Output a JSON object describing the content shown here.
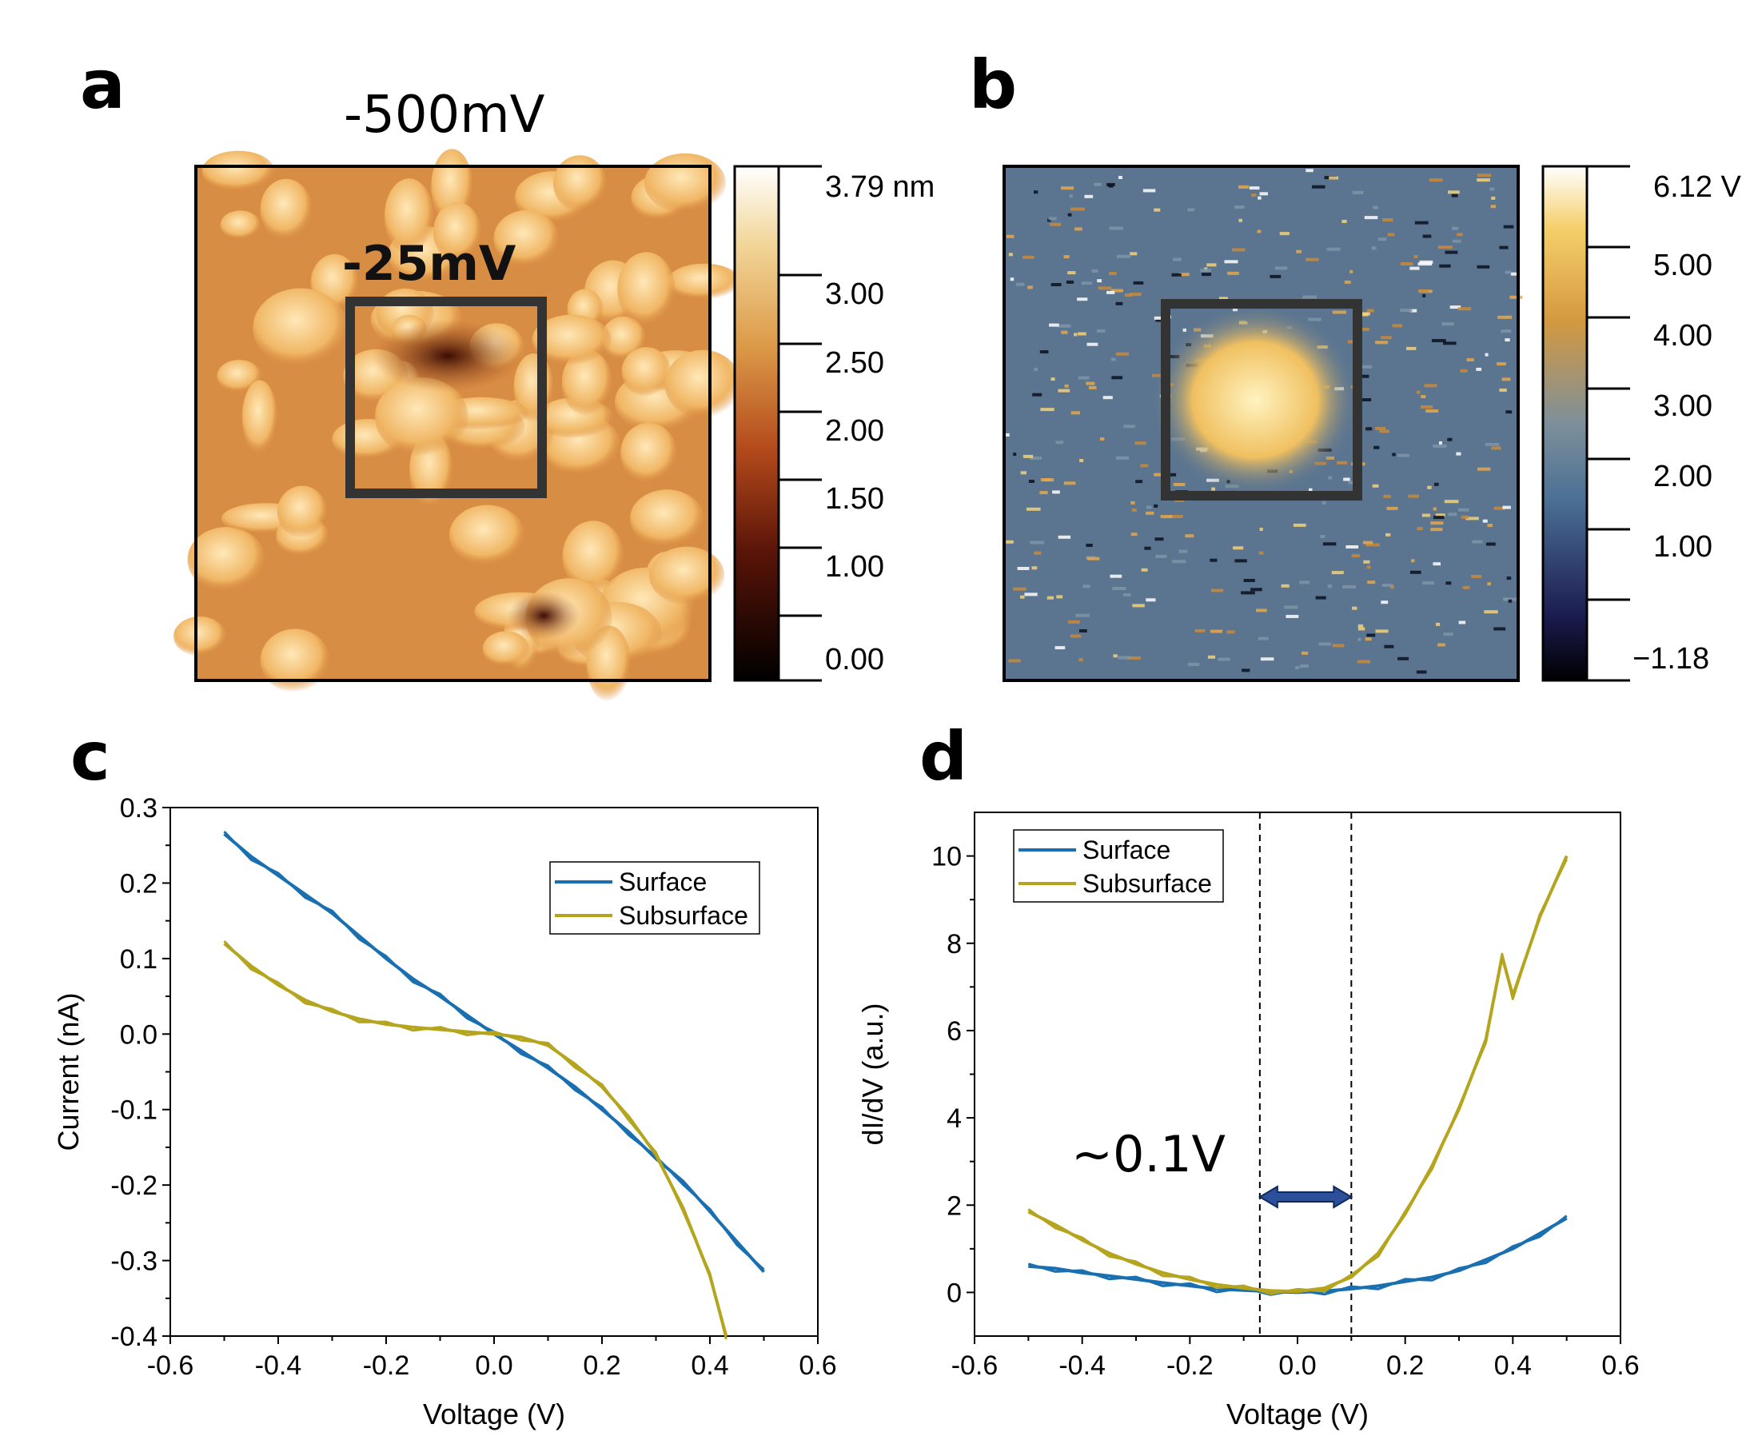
{
  "panel_letters": [
    "a",
    "b",
    "c",
    "d"
  ],
  "panel_a": {
    "title": "-500mV",
    "box_label": "-25mV",
    "colorbar": {
      "max_label": "3.79 nm",
      "ticks": [
        "3.00",
        "2.50",
        "2.00",
        "1.50",
        "1.00",
        "0.00"
      ]
    }
  },
  "panel_b": {
    "colorbar": {
      "max_label": "6.12 V",
      "ticks": [
        "5.00",
        "4.00",
        "3.00",
        "2.00",
        "1.00",
        "−1.18"
      ]
    }
  },
  "colors": {
    "surface": "#1a6fb0",
    "subsurface": "#b5a51e",
    "arrow": "#2b4f9a"
  },
  "chart_data": [
    {
      "id": "c",
      "type": "line",
      "xlabel": "Voltage (V)",
      "ylabel": "Current (nA)",
      "xlim": [
        -0.6,
        0.6
      ],
      "ylim": [
        -0.4,
        0.3
      ],
      "xticks": [
        "-0.6",
        "-0.4",
        "-0.2",
        "0.0",
        "0.2",
        "0.4",
        "0.6"
      ],
      "yticks": [
        "0.3",
        "0.2",
        "0.1",
        "0.0",
        "-0.1",
        "-0.2",
        "-0.3",
        "-0.4"
      ],
      "legend": [
        "Surface",
        "Subsurface"
      ],
      "series": [
        {
          "name": "Surface",
          "x": [
            -0.5,
            -0.45,
            -0.4,
            -0.35,
            -0.3,
            -0.25,
            -0.2,
            -0.15,
            -0.1,
            -0.05,
            0,
            0.05,
            0.1,
            0.15,
            0.2,
            0.25,
            0.3,
            0.35,
            0.4,
            0.45,
            0.5
          ],
          "y": [
            0.265,
            0.235,
            0.21,
            0.185,
            0.16,
            0.13,
            0.1,
            0.073,
            0.05,
            0.025,
            0.0,
            -0.022,
            -0.045,
            -0.07,
            -0.1,
            -0.13,
            -0.165,
            -0.195,
            -0.235,
            -0.275,
            -0.315
          ]
        },
        {
          "name": "Subsurface",
          "x": [
            -0.5,
            -0.45,
            -0.4,
            -0.35,
            -0.3,
            -0.25,
            -0.2,
            -0.15,
            -0.1,
            -0.05,
            0,
            0.05,
            0.1,
            0.15,
            0.2,
            0.25,
            0.3,
            0.35,
            0.4,
            0.43
          ],
          "y": [
            0.12,
            0.09,
            0.065,
            0.045,
            0.03,
            0.02,
            0.013,
            0.009,
            0.006,
            0.003,
            0.0,
            -0.004,
            -0.015,
            -0.04,
            -0.07,
            -0.11,
            -0.16,
            -0.23,
            -0.32,
            -0.4
          ]
        }
      ]
    },
    {
      "id": "d",
      "type": "line",
      "xlabel": "Voltage (V)",
      "ylabel": "dI/dV (a.u.)",
      "xlim": [
        -0.6,
        0.6
      ],
      "ylim": [
        -1,
        11
      ],
      "xticks": [
        "-0.6",
        "-0.4",
        "-0.2",
        "0.0",
        "0.2",
        "0.4",
        "0.6"
      ],
      "yticks": [
        "10",
        "8",
        "6",
        "4",
        "2",
        "0"
      ],
      "legend": [
        "Surface",
        "Subsurface"
      ],
      "annotation": {
        "text": "~0.1V",
        "x_from": -0.07,
        "x_to": 0.1,
        "dashed_lines_x": [
          -0.07,
          0.1
        ]
      },
      "series": [
        {
          "name": "Surface",
          "x": [
            -0.5,
            -0.45,
            -0.4,
            -0.35,
            -0.3,
            -0.25,
            -0.2,
            -0.15,
            -0.1,
            -0.05,
            0,
            0.05,
            0.1,
            0.15,
            0.2,
            0.25,
            0.3,
            0.35,
            0.4,
            0.45,
            0.5
          ],
          "y": [
            0.6,
            0.55,
            0.45,
            0.38,
            0.3,
            0.22,
            0.15,
            0.08,
            0.05,
            0.02,
            0.0,
            0.03,
            0.08,
            0.15,
            0.25,
            0.35,
            0.5,
            0.75,
            1.0,
            1.35,
            1.7
          ]
        },
        {
          "name": "Subsurface",
          "x": [
            -0.5,
            -0.45,
            -0.4,
            -0.35,
            -0.3,
            -0.25,
            -0.2,
            -0.15,
            -0.1,
            -0.05,
            0,
            0.05,
            0.1,
            0.15,
            0.2,
            0.25,
            0.3,
            0.35,
            0.38,
            0.4,
            0.45,
            0.5
          ],
          "y": [
            1.85,
            1.55,
            1.2,
            0.9,
            0.65,
            0.45,
            0.3,
            0.18,
            0.1,
            0.04,
            0.02,
            0.1,
            0.35,
            0.9,
            1.8,
            2.9,
            4.2,
            5.8,
            7.7,
            6.8,
            8.6,
            10.0
          ]
        }
      ]
    }
  ]
}
